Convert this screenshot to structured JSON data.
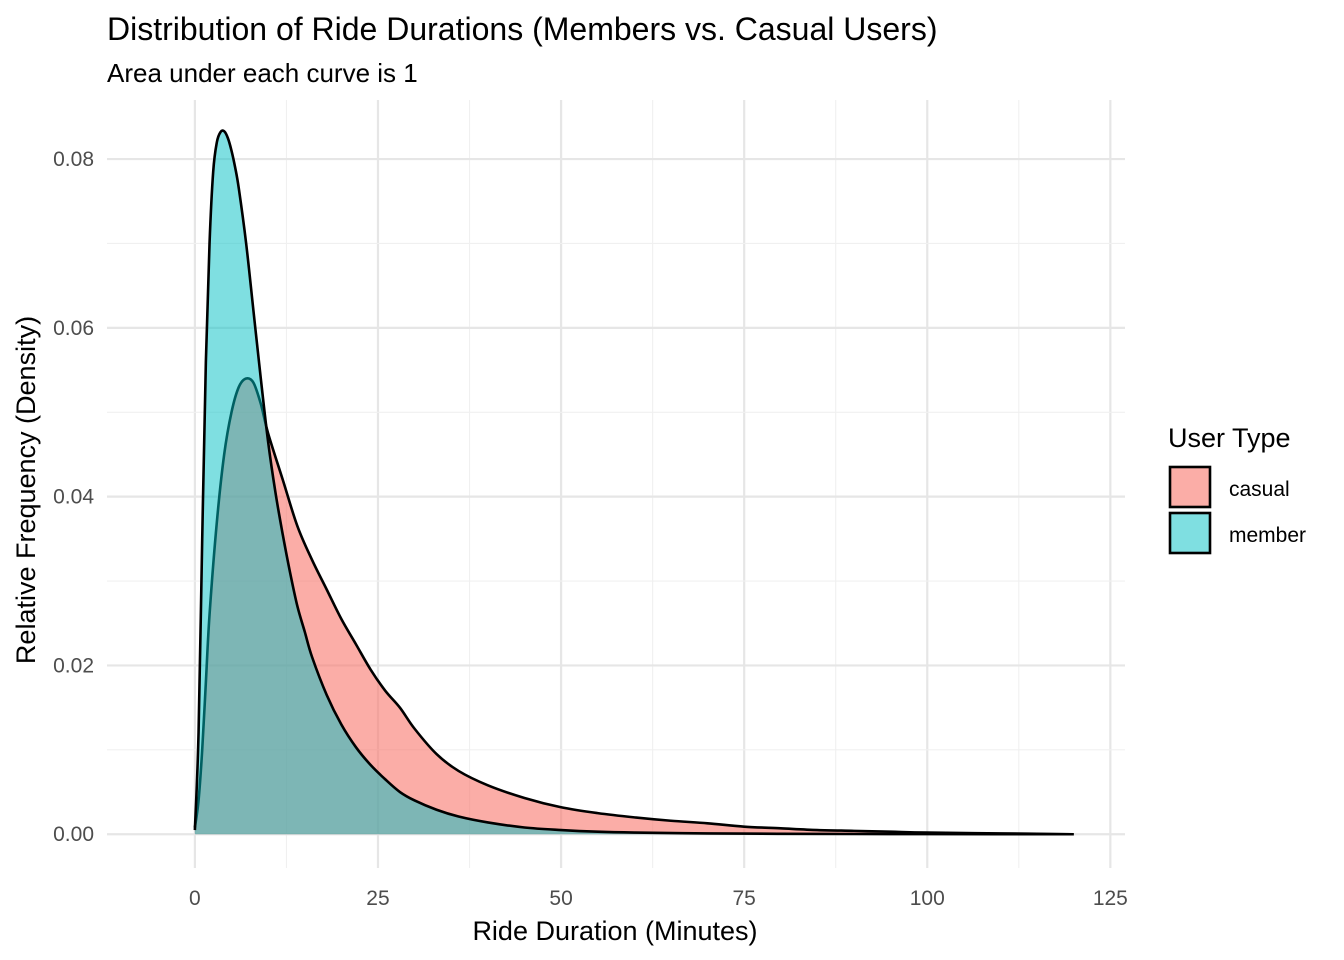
{
  "chart_data": {
    "type": "area",
    "title": "Distribution of Ride Durations (Members vs. Casual Users)",
    "subtitle": "Area under each curve is 1",
    "xlabel": "Ride Duration (Minutes)",
    "ylabel": "Relative Frequency (Density)",
    "xlim": [
      -12,
      127
    ],
    "ylim": [
      -0.004,
      0.087
    ],
    "x_ticks": [
      0,
      25,
      50,
      75,
      100,
      125
    ],
    "x_tick_labels": [
      "0",
      "25",
      "50",
      "75",
      "100",
      "125"
    ],
    "y_ticks": [
      0,
      0.02,
      0.04,
      0.06,
      0.08
    ],
    "y_tick_labels": [
      "0.00",
      "0.02",
      "0.04",
      "0.06",
      "0.08"
    ],
    "grid": true,
    "legend": {
      "title": "User Type",
      "position": "right"
    },
    "series": [
      {
        "name": "casual",
        "color": "#F8766D",
        "opacity": 0.6,
        "x": [
          0,
          0.5,
          1,
          1.5,
          2,
          3,
          4,
          5,
          6,
          7,
          8,
          9,
          10,
          12,
          14,
          16,
          18,
          20,
          22,
          24,
          26,
          28,
          30,
          33,
          36,
          40,
          45,
          50,
          55,
          60,
          65,
          70,
          75,
          80,
          85,
          90,
          95,
          100,
          110,
          120
        ],
        "y": [
          0.0008,
          0.004,
          0.01,
          0.018,
          0.026,
          0.037,
          0.045,
          0.05,
          0.053,
          0.054,
          0.0535,
          0.051,
          0.0475,
          0.042,
          0.0365,
          0.0325,
          0.029,
          0.0255,
          0.0225,
          0.0195,
          0.017,
          0.015,
          0.0125,
          0.0095,
          0.0075,
          0.0058,
          0.0043,
          0.0032,
          0.0025,
          0.002,
          0.0016,
          0.0013,
          0.0009,
          0.0007,
          0.0005,
          0.0004,
          0.0003,
          0.0002,
          0.0001,
          0.0
        ]
      },
      {
        "name": "member",
        "color": "#00BFC4",
        "opacity": 0.5,
        "x": [
          0,
          0.5,
          1,
          1.5,
          2,
          2.5,
          3,
          3.5,
          4,
          4.5,
          5,
          5.5,
          6,
          7,
          8,
          9,
          10,
          11,
          12,
          13,
          14,
          15,
          16,
          18,
          20,
          22,
          24,
          26,
          28,
          30,
          33,
          36,
          40,
          45,
          50,
          55,
          60,
          70,
          80,
          90,
          100,
          110,
          120
        ],
        "y": [
          0.0005,
          0.012,
          0.035,
          0.056,
          0.07,
          0.0785,
          0.082,
          0.0832,
          0.0833,
          0.0825,
          0.081,
          0.079,
          0.0765,
          0.07,
          0.062,
          0.054,
          0.0465,
          0.0405,
          0.0355,
          0.031,
          0.027,
          0.024,
          0.021,
          0.0165,
          0.013,
          0.0103,
          0.0082,
          0.0065,
          0.005,
          0.004,
          0.0029,
          0.0021,
          0.0014,
          0.0008,
          0.0005,
          0.0003,
          0.0002,
          0.0001,
          5e-05,
          3e-05,
          2e-05,
          1e-05,
          0.0
        ]
      }
    ]
  }
}
